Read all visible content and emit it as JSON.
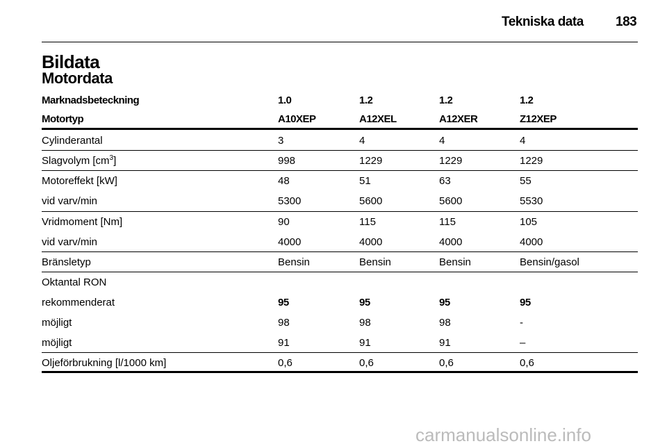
{
  "header": {
    "title": "Tekniska data",
    "page": "183"
  },
  "section": "Bildata",
  "subsection": "Motordata",
  "table": {
    "header_rows": [
      [
        "Marknadsbeteckning",
        "1.0",
        "1.2",
        "1.2",
        "1.2"
      ],
      [
        "Motortyp",
        "A10XEP",
        "A12XEL",
        "A12XER",
        "Z12XEP"
      ]
    ],
    "rows": [
      [
        "Cylinderantal",
        "3",
        "4",
        "4",
        "4"
      ],
      [
        [
          "Slagvolym [cm",
          "3",
          "]"
        ],
        "998",
        "1229",
        "1229",
        "1229"
      ],
      [
        "Motoreffekt [kW]",
        "48",
        "51",
        "63",
        "55"
      ],
      [
        "vid varv/min",
        "5300",
        "5600",
        "5600",
        "5530"
      ],
      [
        "Vridmoment [Nm]",
        "90",
        "115",
        "115",
        "105"
      ],
      [
        "vid varv/min",
        "4000",
        "4000",
        "4000",
        "4000"
      ],
      [
        "Bränsletyp",
        "Bensin",
        "Bensin",
        "Bensin",
        "Bensin/gasol"
      ],
      [
        "Oktantal RON"
      ],
      [
        "rekommenderat",
        "95",
        "95",
        "95",
        "95"
      ],
      [
        "möjligt",
        "98",
        "98",
        "98",
        "-"
      ],
      [
        "möjligt",
        "91",
        "91",
        "91",
        "–"
      ],
      [
        "Oljeförbrukning [l/1000 km]",
        "0,6",
        "0,6",
        "0,6",
        "0,6"
      ]
    ]
  },
  "watermark": "carmanualsonline.info"
}
